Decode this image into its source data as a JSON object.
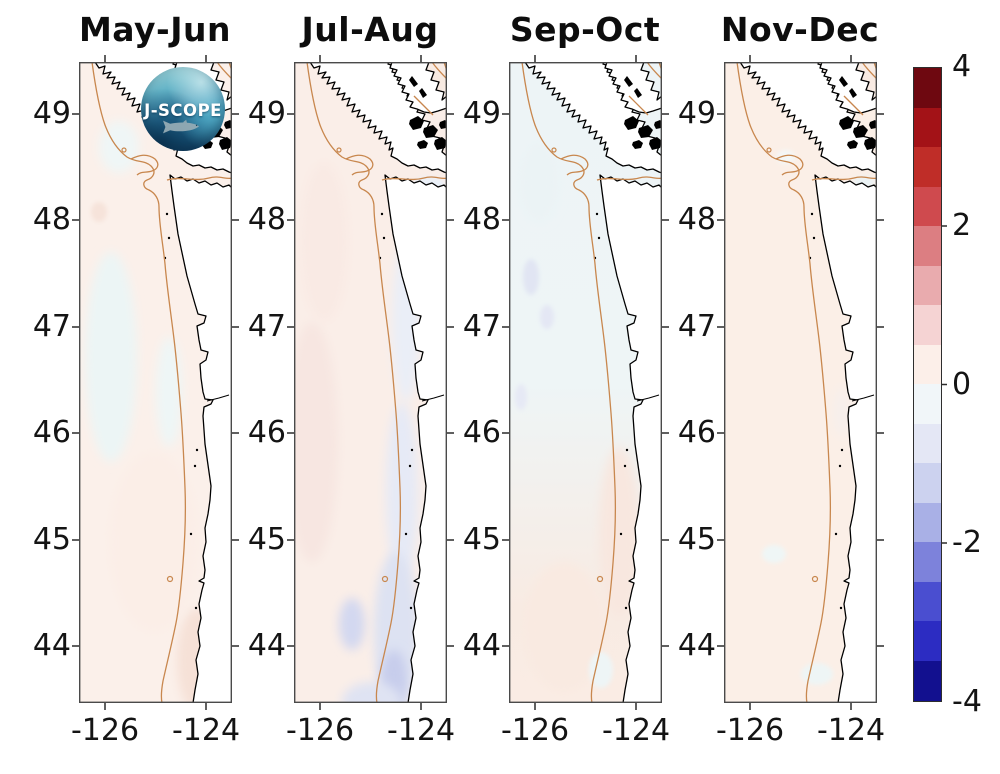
{
  "panels": [
    {
      "id": "may-jun",
      "title": "May-Jun"
    },
    {
      "id": "jul-aug",
      "title": "Jul-Aug"
    },
    {
      "id": "sep-oct",
      "title": "Sep-Oct"
    },
    {
      "id": "nov-dec",
      "title": "Nov-Dec"
    }
  ],
  "axes": {
    "lat_tick_labels": [
      "49",
      "48",
      "47",
      "46",
      "45",
      "44"
    ],
    "lon_tick_labels": [
      "-126",
      "-124"
    ]
  },
  "colorbar": {
    "tick_labels": [
      "4",
      "2",
      "0",
      "-2",
      "-4"
    ],
    "range_min": -4,
    "range_max": 4,
    "level_step": 0.5,
    "segment_colors_top_to_bottom": [
      "#6e0810",
      "#a31217",
      "#bf2d28",
      "#cf4a4e",
      "#dc7e82",
      "#e9abae",
      "#f5d3d3",
      "#fcefe9",
      "#f1f6f9",
      "#e4e7f5",
      "#ccd2ef",
      "#a9b0e6",
      "#7d82db",
      "#4a4ed0",
      "#2c2cc2",
      "#12108f"
    ]
  },
  "logo": {
    "label": "J-SCOPE"
  },
  "map_style": {
    "land_color": "#ffffff",
    "coast_color": "#000000",
    "isobath_color": "#c8874e",
    "frame_color": "#4a4a4a"
  },
  "chart_data": {
    "type": "heatmap",
    "title": "",
    "subtitle": "Four bimonthly coastal anomaly maps (Pacific Northwest shelf, Vancouver Island to Oregon) with shared diverging colorbar",
    "x_range_lon": [
      -126.5,
      -123.5
    ],
    "y_range_lat": [
      43.5,
      49.5
    ],
    "lat_ticks": [
      49,
      48,
      47,
      46,
      45,
      44
    ],
    "lon_ticks": [
      -126,
      -124
    ],
    "colorbar_ticks": [
      4,
      2,
      0,
      -2,
      -4
    ],
    "colorbar_range": [
      -4,
      4
    ],
    "legend_position": "right",
    "grid": false,
    "series": [
      {
        "name": "May-Jun",
        "pattern": "weak positive anomaly (~0 to +0.5) over most of domain; faint negative (0 to -0.5) patches offshore and near central WA coast; slightly stronger positive near southern coast"
      },
      {
        "name": "Jul-Aug",
        "pattern": "weak positive offshore; negative band (0 to -1) hugging the coast south of ~47N, strongest (~-1) near 43.5-44.5N along shelf; small -0.5 to -1 patch offshore near 44.2N"
      },
      {
        "name": "Sep-Oct",
        "pattern": "weak negative (0 to -0.5) over northern half including Strait of Juan de Fuca; weak positive (0 to +0.5) over southern third near and off Oregon coast"
      },
      {
        "name": "Nov-Dec",
        "pattern": "weak positive (0 to +0.5) nearly everywhere; few tiny near-zero/negative pockets in strait mouth and along southern coast"
      }
    ]
  }
}
